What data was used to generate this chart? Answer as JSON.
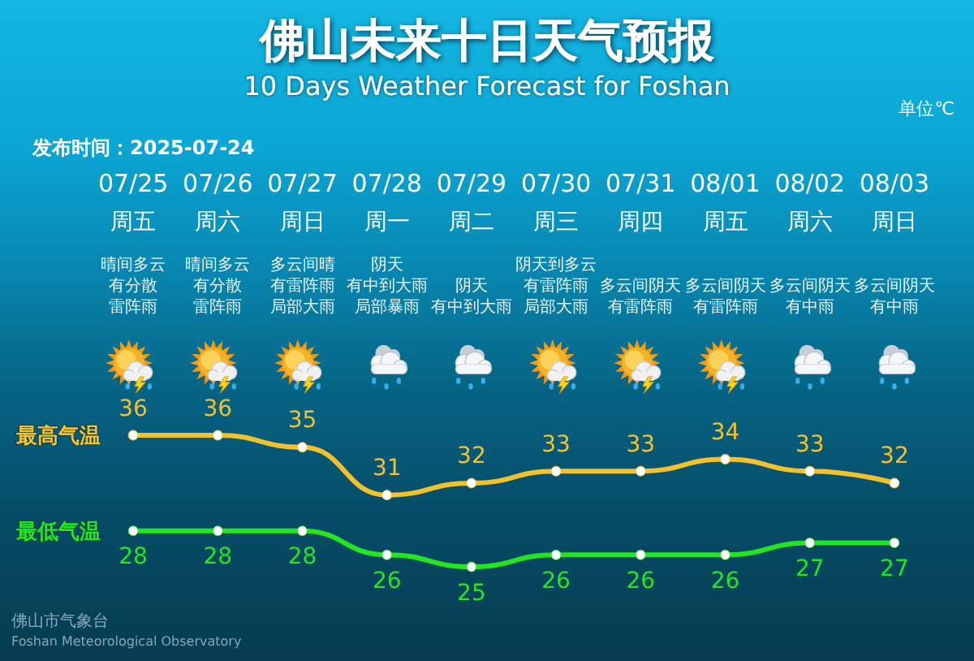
{
  "chart_data": {
    "type": "line",
    "title": "佛山未来十日天气预报",
    "subtitle": "10 Days Weather Forecast for Foshan",
    "categories": [
      "07/25\n周五",
      "07/26\n周六",
      "07/27\n周日",
      "07/28\n周一",
      "07/29\n周二",
      "07/30\n周三",
      "07/31\n周四",
      "08/01\n周五",
      "08/02\n周六",
      "08/03\n周日"
    ],
    "series": [
      {
        "name": "最高气温",
        "color": "#f2c12e",
        "values": [
          36,
          36,
          35,
          31,
          32,
          33,
          33,
          34,
          33,
          32
        ]
      },
      {
        "name": "最低气温",
        "color": "#22e622",
        "values": [
          28,
          28,
          28,
          26,
          25,
          26,
          26,
          26,
          27,
          27
        ]
      }
    ],
    "data_labels": true,
    "marker": "circle",
    "line_style": "solid",
    "tick_labels": "x",
    "annotations": [
      "发布时间：2025-07-24",
      "单位℃",
      "晴间多云有分散雷阵雨",
      "晴间多云有分散雷阵雨",
      "多云间晴有雷阵雨局部大雨",
      "阴天有中到大雨局部暴雨",
      "阴天有中到大雨",
      "阴天到多云有雷阵雨局部大雨",
      "多云间阴天有雷阵雨",
      "多云间阴天有雷阵雨",
      "多云间阴天有中雨",
      "多云间阴天有中雨",
      "佛山市气象台",
      "Foshan Meteorological Observatory"
    ]
  }
}
